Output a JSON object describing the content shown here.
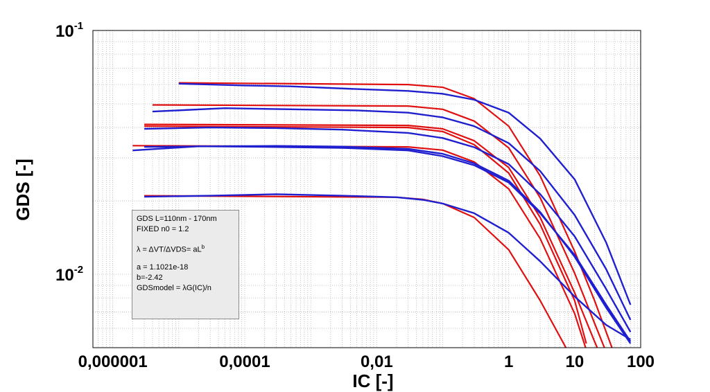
{
  "chart_data": {
    "type": "line",
    "xlabel": "IC [-]",
    "ylabel": "GDS [-]",
    "xscale": "log",
    "yscale": "log",
    "xlim": [
      5e-07,
      100
    ],
    "ylim": [
      0.005,
      0.1
    ],
    "grid": true,
    "x_ticks": [
      {
        "value": 1e-06,
        "label": "0,000001"
      },
      {
        "value": 0.0001,
        "label": "0,0001"
      },
      {
        "value": 0.01,
        "label": "0,01"
      },
      {
        "value": 1,
        "label": "1"
      },
      {
        "value": 10,
        "label": "10"
      },
      {
        "value": 100,
        "label": "100"
      }
    ],
    "y_ticks": [
      {
        "value": 0.1,
        "base": "10",
        "exponent": "-1"
      },
      {
        "value": 0.01,
        "base": "10",
        "exponent": "-2"
      }
    ],
    "series_colors": {
      "measured": "#1f1fd0",
      "model": "#e01010"
    },
    "series": [
      {
        "kind": "model",
        "x": [
          1e-05,
          0.03,
          0.1,
          0.3,
          1,
          3,
          10,
          20,
          40
        ],
        "y": [
          0.061,
          0.06,
          0.0585,
          0.0525,
          0.0405,
          0.0253,
          0.0124,
          0.0078,
          0.0047
        ]
      },
      {
        "kind": "model",
        "x": [
          4e-06,
          0.03,
          0.1,
          0.3,
          1,
          3,
          10,
          20,
          30
        ],
        "y": [
          0.0495,
          0.049,
          0.0475,
          0.0425,
          0.033,
          0.0206,
          0.0101,
          0.0063,
          0.0048
        ]
      },
      {
        "kind": "model",
        "x": [
          3e-06,
          0.03,
          0.1,
          0.3,
          1,
          3,
          10,
          20,
          25
        ],
        "y": [
          0.0412,
          0.0408,
          0.0395,
          0.0353,
          0.0274,
          0.0171,
          0.0084,
          0.0053,
          0.0046
        ]
      },
      {
        "kind": "model",
        "x": [
          2e-06,
          0.03,
          0.1,
          0.3,
          1,
          3,
          10,
          15
        ],
        "y": [
          0.0337,
          0.0333,
          0.0323,
          0.0289,
          0.0224,
          0.014,
          0.0069,
          0.0049
        ]
      },
      {
        "kind": "model",
        "x": [
          3e-06,
          0.02,
          0.05,
          0.1,
          0.3,
          1,
          3,
          8
        ],
        "y": [
          0.021,
          0.0207,
          0.0203,
          0.0195,
          0.0171,
          0.0126,
          0.0078,
          0.0048
        ]
      },
      {
        "kind": "model",
        "x": [
          3e-06,
          0.03,
          0.1,
          0.3,
          1,
          3,
          10,
          15
        ],
        "y": [
          0.0405,
          0.04,
          0.0385,
          0.034,
          0.026,
          0.016,
          0.0078,
          0.0052
        ]
      },
      {
        "kind": "measured",
        "x": [
          1e-05,
          0.0001,
          0.0005,
          0.005,
          0.03,
          0.1,
          0.3,
          1,
          3,
          10,
          30,
          70
        ],
        "y": [
          0.0605,
          0.0595,
          0.059,
          0.0575,
          0.0565,
          0.055,
          0.052,
          0.046,
          0.036,
          0.0245,
          0.0135,
          0.0075
        ]
      },
      {
        "kind": "measured",
        "x": [
          4e-06,
          5e-05,
          0.0005,
          0.005,
          0.03,
          0.1,
          0.3,
          1,
          3,
          10,
          30,
          70
        ],
        "y": [
          0.0465,
          0.048,
          0.0475,
          0.047,
          0.046,
          0.044,
          0.0405,
          0.0345,
          0.0265,
          0.0175,
          0.0105,
          0.0065
        ]
      },
      {
        "kind": "measured",
        "x": [
          3e-06,
          3e-05,
          0.0003,
          0.003,
          0.03,
          0.1,
          0.3,
          1,
          3,
          10,
          30,
          70
        ],
        "y": [
          0.0395,
          0.04,
          0.0398,
          0.0392,
          0.038,
          0.0362,
          0.0332,
          0.0283,
          0.0213,
          0.0143,
          0.0087,
          0.0058
        ]
      },
      {
        "kind": "measured",
        "x": [
          2e-06,
          2e-05,
          0.0002,
          0.003,
          0.03,
          0.1,
          0.3,
          1,
          3,
          10,
          30,
          70
        ],
        "y": [
          0.0322,
          0.0335,
          0.0333,
          0.033,
          0.0322,
          0.0305,
          0.028,
          0.0238,
          0.0178,
          0.012,
          0.0075,
          0.0053
        ]
      },
      {
        "kind": "measured",
        "x": [
          3e-06,
          3e-05,
          0.0003,
          0.003,
          0.03,
          0.1,
          0.3,
          1,
          3,
          10,
          30,
          70
        ],
        "y": [
          0.0333,
          0.0335,
          0.0336,
          0.0334,
          0.0327,
          0.0312,
          0.0285,
          0.0242,
          0.018,
          0.0118,
          0.0073,
          0.0052
        ]
      },
      {
        "kind": "measured",
        "x": [
          3e-06,
          3e-05,
          0.0003,
          0.003,
          0.02,
          0.05,
          0.1,
          0.3,
          1,
          3,
          10,
          30,
          70
        ],
        "y": [
          0.0208,
          0.021,
          0.0213,
          0.021,
          0.0207,
          0.0202,
          0.0195,
          0.0178,
          0.0148,
          0.0113,
          0.0081,
          0.0062,
          0.0054
        ]
      }
    ],
    "annotation": {
      "line1": "GDS L=110nm - 170nm",
      "line2": "FIXED n0 = 1.2",
      "line3": "λ = ΔVT/ΔVDS= aL",
      "line3_sup": "b",
      "line4": "a = 1.1021e-18",
      "line5": "b=-2.42",
      "line6": "GDSmodel = λG(IC)/n"
    }
  }
}
